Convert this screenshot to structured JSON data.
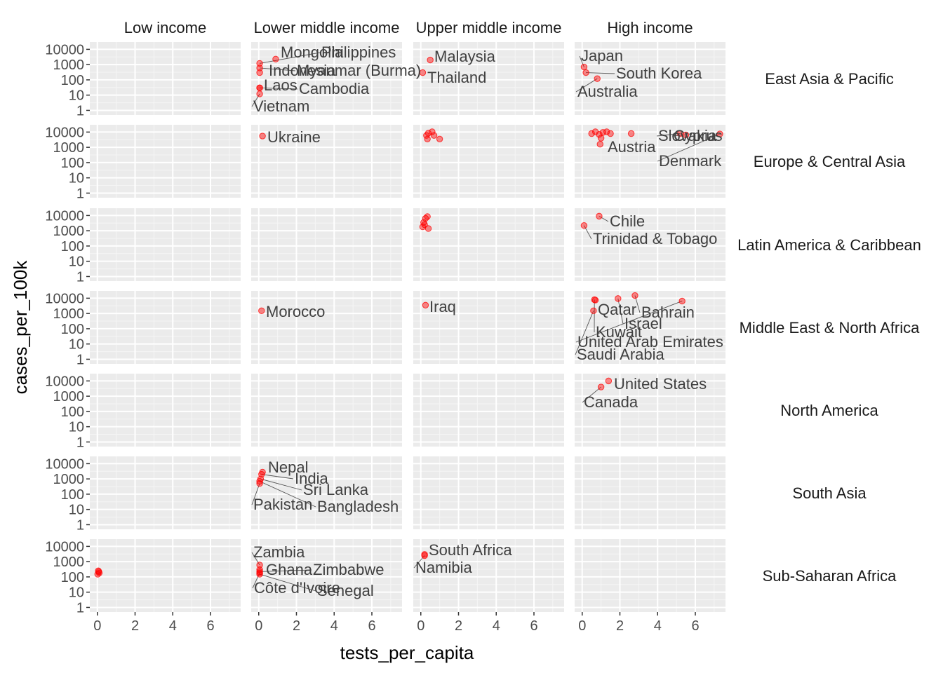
{
  "chart_data": {
    "type": "scatter",
    "xlabel": "tests_per_capita",
    "ylabel": "cases_per_100k",
    "x_ticks": [
      0,
      2,
      4,
      6
    ],
    "y_ticks": [
      1,
      10,
      100,
      1000,
      10000
    ],
    "y_tick_labels": [
      "1",
      "10",
      "100",
      "1000",
      "10000"
    ],
    "y_scale": "log10",
    "xlim": [
      -0.4,
      7.6
    ],
    "ylim": [
      0.5,
      30000
    ],
    "grid": true,
    "point_color": "#ff0000",
    "columns": [
      "Low income",
      "Lower middle income",
      "Upper middle income",
      "High income"
    ],
    "rows": [
      "East Asia & Pacific",
      "Europe & Central Asia",
      "Latin America & Caribbean",
      "Middle East & North Africa",
      "North America",
      "South Asia",
      "Sub-Saharan Africa"
    ],
    "points": [
      {
        "row": 0,
        "col": 1,
        "x": 0.9,
        "y": 2300,
        "label": "Mongolia"
      },
      {
        "row": 0,
        "col": 1,
        "x": 0.05,
        "y": 1200,
        "label": "Philippines"
      },
      {
        "row": 0,
        "col": 1,
        "x": 0.05,
        "y": 600,
        "label": "Myanmar (Burma)"
      },
      {
        "row": 0,
        "col": 1,
        "x": 0.05,
        "y": 300,
        "label": "Indonesia"
      },
      {
        "row": 0,
        "col": 1,
        "x": 0.05,
        "y": 30,
        "label": "Laos"
      },
      {
        "row": 0,
        "col": 1,
        "x": 0.05,
        "y": 30,
        "label": "Cambodia"
      },
      {
        "row": 0,
        "col": 1,
        "x": 0.05,
        "y": 12,
        "label": "Vietnam"
      },
      {
        "row": 0,
        "col": 2,
        "x": 0.5,
        "y": 2000,
        "label": "Malaysia"
      },
      {
        "row": 0,
        "col": 2,
        "x": 0.1,
        "y": 300,
        "label": "Thailand"
      },
      {
        "row": 0,
        "col": 3,
        "x": 0.1,
        "y": 700,
        "label": "Japan"
      },
      {
        "row": 0,
        "col": 3,
        "x": 0.2,
        "y": 300,
        "label": "South Korea"
      },
      {
        "row": 0,
        "col": 3,
        "x": 0.8,
        "y": 120,
        "label": "Australia"
      },
      {
        "row": 1,
        "col": 1,
        "x": 0.2,
        "y": 5500,
        "label": "Ukraine"
      },
      {
        "row": 1,
        "col": 2,
        "x": 0.3,
        "y": 6000,
        "label": ""
      },
      {
        "row": 1,
        "col": 2,
        "x": 0.4,
        "y": 8500,
        "label": ""
      },
      {
        "row": 1,
        "col": 2,
        "x": 0.6,
        "y": 10500,
        "label": ""
      },
      {
        "row": 1,
        "col": 2,
        "x": 0.35,
        "y": 3500,
        "label": ""
      },
      {
        "row": 1,
        "col": 2,
        "x": 0.7,
        "y": 6000,
        "label": ""
      },
      {
        "row": 1,
        "col": 2,
        "x": 1.0,
        "y": 3500,
        "label": ""
      },
      {
        "row": 1,
        "col": 3,
        "x": 0.5,
        "y": 8000,
        "label": ""
      },
      {
        "row": 1,
        "col": 3,
        "x": 0.7,
        "y": 10500,
        "label": ""
      },
      {
        "row": 1,
        "col": 3,
        "x": 0.9,
        "y": 7000,
        "label": ""
      },
      {
        "row": 1,
        "col": 3,
        "x": 1.1,
        "y": 9500,
        "label": ""
      },
      {
        "row": 1,
        "col": 3,
        "x": 1.3,
        "y": 10500,
        "label": ""
      },
      {
        "row": 1,
        "col": 3,
        "x": 1.5,
        "y": 8000,
        "label": ""
      },
      {
        "row": 1,
        "col": 3,
        "x": 1.0,
        "y": 4000,
        "label": ""
      },
      {
        "row": 1,
        "col": 3,
        "x": 0.95,
        "y": 1600,
        "label": "Austria"
      },
      {
        "row": 1,
        "col": 3,
        "x": 2.6,
        "y": 8000,
        "label": ""
      },
      {
        "row": 1,
        "col": 3,
        "x": 5.2,
        "y": 8000,
        "label": "Slovakia"
      },
      {
        "row": 1,
        "col": 3,
        "x": 5.5,
        "y": 6500,
        "label": "Cyprus"
      },
      {
        "row": 1,
        "col": 3,
        "x": 7.3,
        "y": 7500,
        "label": "Denmark"
      },
      {
        "row": 2,
        "col": 2,
        "x": 0.1,
        "y": 1800,
        "label": ""
      },
      {
        "row": 2,
        "col": 2,
        "x": 0.15,
        "y": 3500,
        "label": ""
      },
      {
        "row": 2,
        "col": 2,
        "x": 0.25,
        "y": 6500,
        "label": ""
      },
      {
        "row": 2,
        "col": 2,
        "x": 0.35,
        "y": 8500,
        "label": ""
      },
      {
        "row": 2,
        "col": 2,
        "x": 0.2,
        "y": 2500,
        "label": ""
      },
      {
        "row": 2,
        "col": 2,
        "x": 0.4,
        "y": 1400,
        "label": ""
      },
      {
        "row": 2,
        "col": 3,
        "x": 0.9,
        "y": 9000,
        "label": "Chile"
      },
      {
        "row": 2,
        "col": 3,
        "x": 0.1,
        "y": 2200,
        "label": "Trinidad & Tobago"
      },
      {
        "row": 3,
        "col": 1,
        "x": 0.15,
        "y": 1500,
        "label": "Morocco"
      },
      {
        "row": 3,
        "col": 2,
        "x": 0.25,
        "y": 3500,
        "label": "Iraq"
      },
      {
        "row": 3,
        "col": 3,
        "x": 0.7,
        "y": 7500,
        "label": "Qatar"
      },
      {
        "row": 3,
        "col": 3,
        "x": 0.65,
        "y": 8000,
        "label": "Kuwait"
      },
      {
        "row": 3,
        "col": 3,
        "x": 1.9,
        "y": 9500,
        "label": "Israel"
      },
      {
        "row": 3,
        "col": 3,
        "x": 2.8,
        "y": 15000,
        "label": "Bahrain"
      },
      {
        "row": 3,
        "col": 3,
        "x": 5.3,
        "y": 6500,
        "label": "United Arab Emirates"
      },
      {
        "row": 3,
        "col": 3,
        "x": 0.6,
        "y": 1500,
        "label": "Saudi Arabia"
      },
      {
        "row": 4,
        "col": 3,
        "x": 1.4,
        "y": 10000,
        "label": "United States"
      },
      {
        "row": 4,
        "col": 3,
        "x": 1.0,
        "y": 4000,
        "label": "Canada"
      },
      {
        "row": 5,
        "col": 1,
        "x": 0.2,
        "y": 2800,
        "label": "Nepal"
      },
      {
        "row": 5,
        "col": 1,
        "x": 0.15,
        "y": 2000,
        "label": "India"
      },
      {
        "row": 5,
        "col": 1,
        "x": 0.1,
        "y": 1000,
        "label": "Sri Lanka"
      },
      {
        "row": 5,
        "col": 1,
        "x": 0.05,
        "y": 700,
        "label": "Bangladesh"
      },
      {
        "row": 5,
        "col": 1,
        "x": 0.05,
        "y": 500,
        "label": "Pakistan"
      },
      {
        "row": 6,
        "col": 0,
        "x": 0.05,
        "y": 250,
        "label": ""
      },
      {
        "row": 6,
        "col": 0,
        "x": 0.1,
        "y": 180,
        "label": ""
      },
      {
        "row": 6,
        "col": 0,
        "x": 0.02,
        "y": 150,
        "label": ""
      },
      {
        "row": 6,
        "col": 0,
        "x": 0.08,
        "y": 220,
        "label": ""
      },
      {
        "row": 6,
        "col": 1,
        "x": 0.05,
        "y": 600,
        "label": "Zambia"
      },
      {
        "row": 6,
        "col": 1,
        "x": 0.05,
        "y": 300,
        "label": "Ghana"
      },
      {
        "row": 6,
        "col": 1,
        "x": 0.05,
        "y": 220,
        "label": "Zimbabwe"
      },
      {
        "row": 6,
        "col": 1,
        "x": 0.05,
        "y": 180,
        "label": "Côte d'Ivoire"
      },
      {
        "row": 6,
        "col": 1,
        "x": 0.05,
        "y": 150,
        "label": "Senegal"
      },
      {
        "row": 6,
        "col": 2,
        "x": 0.2,
        "y": 3000,
        "label": "South Africa"
      },
      {
        "row": 6,
        "col": 2,
        "x": 0.2,
        "y": 2500,
        "label": "Namibia"
      }
    ]
  }
}
